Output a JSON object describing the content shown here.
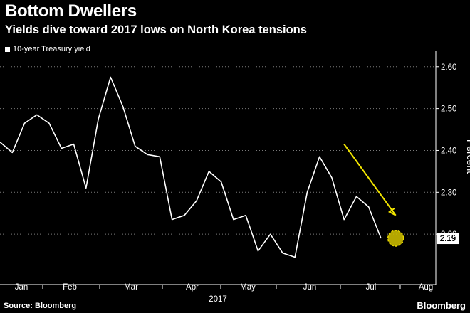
{
  "header": {
    "title": "Bottom Dwellers",
    "subtitle": "Yields dive toward 2017 lows on North Korea tensions"
  },
  "footer": {
    "source": "Source: Bloomberg",
    "brand": "Bloomberg"
  },
  "colors": {
    "background": "#000000",
    "line": "#ffffff",
    "annotation_arrow": "#f3e600",
    "highlight_circle": "#c9b900",
    "grid": "#7a7a7a"
  },
  "chart_data": {
    "type": "line",
    "title": "Bottom Dwellers",
    "subtitle": "Yields dive toward 2017 lows on North Korea tensions",
    "xlabel": "2017",
    "ylabel": "Percent",
    "ylim": [
      2.1,
      2.62
    ],
    "yticks": [
      2.2,
      2.3,
      2.4,
      2.5,
      2.6
    ],
    "ytick_labels": [
      "2.20",
      "2.30",
      "2.40",
      "2.50",
      "2.60"
    ],
    "xticks": [
      "Jan",
      "Feb",
      "Mar",
      "Apr",
      "May",
      "Jun",
      "Jul",
      "Aug"
    ],
    "year_label": "2017",
    "grid": "horizontal-dotted",
    "legend_position": "top-left",
    "series": [
      {
        "name": "10-year Treasury yield",
        "x": [
          0,
          0.5,
          1.0,
          1.5,
          2.0,
          2.5,
          3.0,
          3.5,
          4.0,
          4.5,
          5.0,
          5.5,
          6.0,
          6.5,
          7.0,
          7.5,
          8.0,
          8.5,
          9.0,
          9.5,
          10.0,
          10.5,
          11.0,
          11.5,
          12.0,
          12.5,
          13.0,
          13.5,
          14.0,
          14.5,
          15.0,
          15.5,
          16.0,
          16.5,
          17.0,
          17.5
        ],
        "values": [
          2.42,
          2.395,
          2.465,
          2.485,
          2.465,
          2.405,
          2.415,
          2.31,
          2.475,
          2.575,
          2.505,
          2.41,
          2.39,
          2.385,
          2.235,
          2.245,
          2.28,
          2.35,
          2.325,
          2.235,
          2.245,
          2.16,
          2.2,
          2.155,
          2.145,
          2.3,
          2.385,
          2.335,
          2.235,
          2.29,
          2.265,
          2.19,
          2.19,
          2.19,
          2.19,
          2.19
        ]
      }
    ],
    "end_label": "2.19",
    "annotations": [
      {
        "type": "arrow",
        "from_x": 14.0,
        "from_y": 2.415,
        "to_x": 16.1,
        "to_y": 2.245
      },
      {
        "type": "circle",
        "x": 16.1,
        "y": 2.19
      }
    ]
  }
}
